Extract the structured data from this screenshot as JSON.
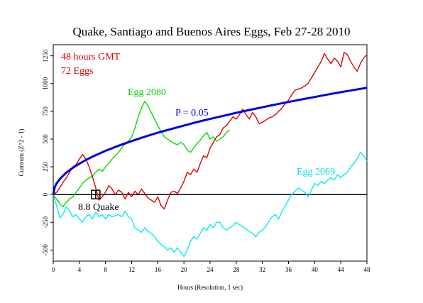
{
  "chart_data": {
    "type": "line",
    "title": "Quake, Santiago and Buenos Aires Eggs, Feb 27-28 2010",
    "xlabel": "Hours (Resolution, 1 sec)",
    "ylabel": "Cumsum (Z^2 - 1)",
    "xlim": [
      0,
      48
    ],
    "ylim": [
      -600,
      1350
    ],
    "x_ticks": [
      0,
      4,
      8,
      12,
      16,
      20,
      24,
      28,
      32,
      36,
      40,
      44,
      48
    ],
    "y_ticks": [
      -500,
      -250,
      0,
      250,
      500,
      750,
      1000,
      1250
    ],
    "grid": false,
    "colors": {
      "main": "#dd0000",
      "egg2080": "#00dd00",
      "egg2069": "#00eeee",
      "envelope": "#0000dd",
      "zero_line": "#000000"
    },
    "annotations": {
      "hours_label": "48 hours GMT",
      "eggs_label": "72 Eggs",
      "egg2080_label": "Egg 2080",
      "egg2069_label": "Egg 2069",
      "p_label": "P = 0.05",
      "quake_label": "8.8 Quake"
    },
    "quake_marker": {
      "x": 6.5,
      "y": 0
    },
    "series": [
      {
        "key": "main",
        "x": [
          0,
          0.5,
          1,
          1.5,
          2,
          2.5,
          3,
          3.5,
          4,
          4.5,
          5,
          5.5,
          6,
          6.5,
          7,
          7.5,
          8,
          8.5,
          9,
          9.5,
          10,
          10.5,
          11,
          11.5,
          12,
          12.5,
          13,
          13.5,
          14,
          14.5,
          15,
          15.5,
          16,
          16.5,
          17,
          17.5,
          18,
          18.5,
          19,
          19.5,
          20,
          20.5,
          21,
          21.5,
          22,
          22.5,
          23,
          23.5,
          24,
          24.5,
          25,
          25.5,
          26,
          26.5,
          27,
          27.5,
          28,
          28.5,
          29,
          29.5,
          30,
          30.5,
          31,
          31.5,
          32,
          32.5,
          33,
          33.5,
          34,
          34.5,
          35,
          35.5,
          36,
          36.5,
          37,
          37.5,
          38,
          38.5,
          39,
          39.5,
          40,
          40.5,
          41,
          41.5,
          42,
          42.5,
          43,
          43.5,
          44,
          44.5,
          45,
          45.5,
          46,
          46.5,
          47,
          47.5,
          48
        ],
        "y": [
          0,
          20,
          60,
          110,
          150,
          200,
          250,
          270,
          320,
          360,
          320,
          250,
          160,
          60,
          -50,
          -20,
          20,
          80,
          50,
          0,
          40,
          20,
          -40,
          20,
          -20,
          30,
          0,
          50,
          10,
          -30,
          -50,
          -70,
          -20,
          -100,
          -130,
          -50,
          20,
          30,
          10,
          60,
          120,
          200,
          180,
          230,
          200,
          280,
          350,
          330,
          420,
          470,
          520,
          540,
          600,
          620,
          660,
          700,
          680,
          720,
          770,
          720,
          680,
          740,
          700,
          640,
          650,
          670,
          690,
          700,
          720,
          750,
          780,
          820,
          850,
          900,
          940,
          950,
          960,
          980,
          1000,
          1050,
          1100,
          1150,
          1200,
          1270,
          1220,
          1180,
          1230,
          1200,
          1150,
          1280,
          1260,
          1200,
          1150,
          1110,
          1180,
          1230,
          1260
        ]
      },
      {
        "key": "egg2080",
        "x": [
          0,
          0.5,
          1,
          1.5,
          2,
          2.5,
          3,
          3.5,
          4,
          4.5,
          5,
          5.5,
          6,
          6.5,
          7,
          7.5,
          8,
          8.5,
          9,
          9.5,
          10,
          10.5,
          11,
          11.5,
          12,
          12.5,
          13,
          13.5,
          14,
          14.5,
          15,
          15.5,
          16,
          16.5,
          17,
          17.5,
          18,
          18.5,
          19,
          19.5,
          20,
          20.5,
          21,
          21.5,
          22,
          22.5,
          23,
          23.5,
          24,
          24.5,
          25,
          25.5,
          26,
          26.5,
          27
        ],
        "y": [
          0,
          -40,
          -80,
          -110,
          -70,
          -40,
          -20,
          20,
          60,
          100,
          130,
          150,
          170,
          200,
          230,
          210,
          250,
          280,
          320,
          350,
          380,
          420,
          460,
          480,
          520,
          600,
          700,
          780,
          840,
          800,
          740,
          680,
          620,
          570,
          520,
          500,
          480,
          460,
          450,
          470,
          450,
          400,
          380,
          420,
          460,
          490,
          530,
          560,
          500,
          520,
          480,
          500,
          520,
          560,
          580
        ]
      },
      {
        "key": "egg2069",
        "x": [
          0,
          0.5,
          1,
          1.5,
          2,
          2.5,
          3,
          3.5,
          4,
          4.5,
          5,
          5.5,
          6,
          6.5,
          7,
          7.5,
          8,
          8.5,
          9,
          9.5,
          10,
          10.5,
          11,
          11.5,
          12,
          12.5,
          13,
          13.5,
          14,
          14.5,
          15,
          15.5,
          16,
          16.5,
          17,
          17.5,
          18,
          18.5,
          19,
          19.5,
          20,
          20.5,
          21,
          21.5,
          22,
          22.5,
          23,
          23.5,
          24,
          24.5,
          25,
          25.5,
          26,
          26.5,
          27,
          27.5,
          28,
          28.5,
          29,
          29.5,
          30,
          30.5,
          31,
          31.5,
          32,
          32.5,
          33,
          33.5,
          34,
          34.5,
          35,
          35.5,
          36,
          36.5,
          37,
          37.5,
          38,
          38.5,
          39,
          39.5,
          40,
          40.5,
          41,
          41.5,
          42,
          42.5,
          43,
          43.5,
          44,
          44.5,
          45,
          45.5,
          46,
          46.5,
          47,
          47.5,
          48
        ],
        "y": [
          0,
          -100,
          -210,
          -180,
          -110,
          -150,
          -200,
          -180,
          -220,
          -250,
          -200,
          -180,
          -220,
          -160,
          -200,
          -180,
          -220,
          -180,
          -200,
          -190,
          -180,
          -200,
          -150,
          -200,
          -220,
          -300,
          -320,
          -340,
          -300,
          -330,
          -350,
          -380,
          -420,
          -450,
          -470,
          -500,
          -480,
          -520,
          -480,
          -520,
          -560,
          -500,
          -420,
          -380,
          -400,
          -350,
          -300,
          -320,
          -270,
          -300,
          -250,
          -250,
          -300,
          -320,
          -300,
          -280,
          -250,
          -270,
          -290,
          -310,
          -330,
          -350,
          -380,
          -340,
          -320,
          -290,
          -240,
          -200,
          -180,
          -220,
          -150,
          -100,
          -50,
          0,
          30,
          60,
          40,
          20,
          -20,
          40,
          100,
          80,
          120,
          100,
          130,
          150,
          130,
          180,
          150,
          180,
          200,
          250,
          280,
          320,
          380,
          350,
          300
        ]
      },
      {
        "key": "envelope",
        "x": [
          0,
          0.25,
          0.5,
          1,
          1.5,
          2,
          3,
          4,
          5,
          6,
          7,
          8,
          10,
          12,
          14,
          16,
          18,
          20,
          22,
          24,
          26,
          28,
          30,
          32,
          34,
          36,
          38,
          40,
          42,
          44,
          46,
          48
        ],
        "y": [
          0,
          70,
          98,
          139,
          170,
          197,
          241,
          278,
          311,
          341,
          368,
          394,
          440,
          482,
          521,
          557,
          590,
          622,
          653,
          681,
          709,
          736,
          762,
          786,
          811,
          834,
          857,
          879,
          901,
          922,
          942,
          962
        ]
      }
    ]
  }
}
